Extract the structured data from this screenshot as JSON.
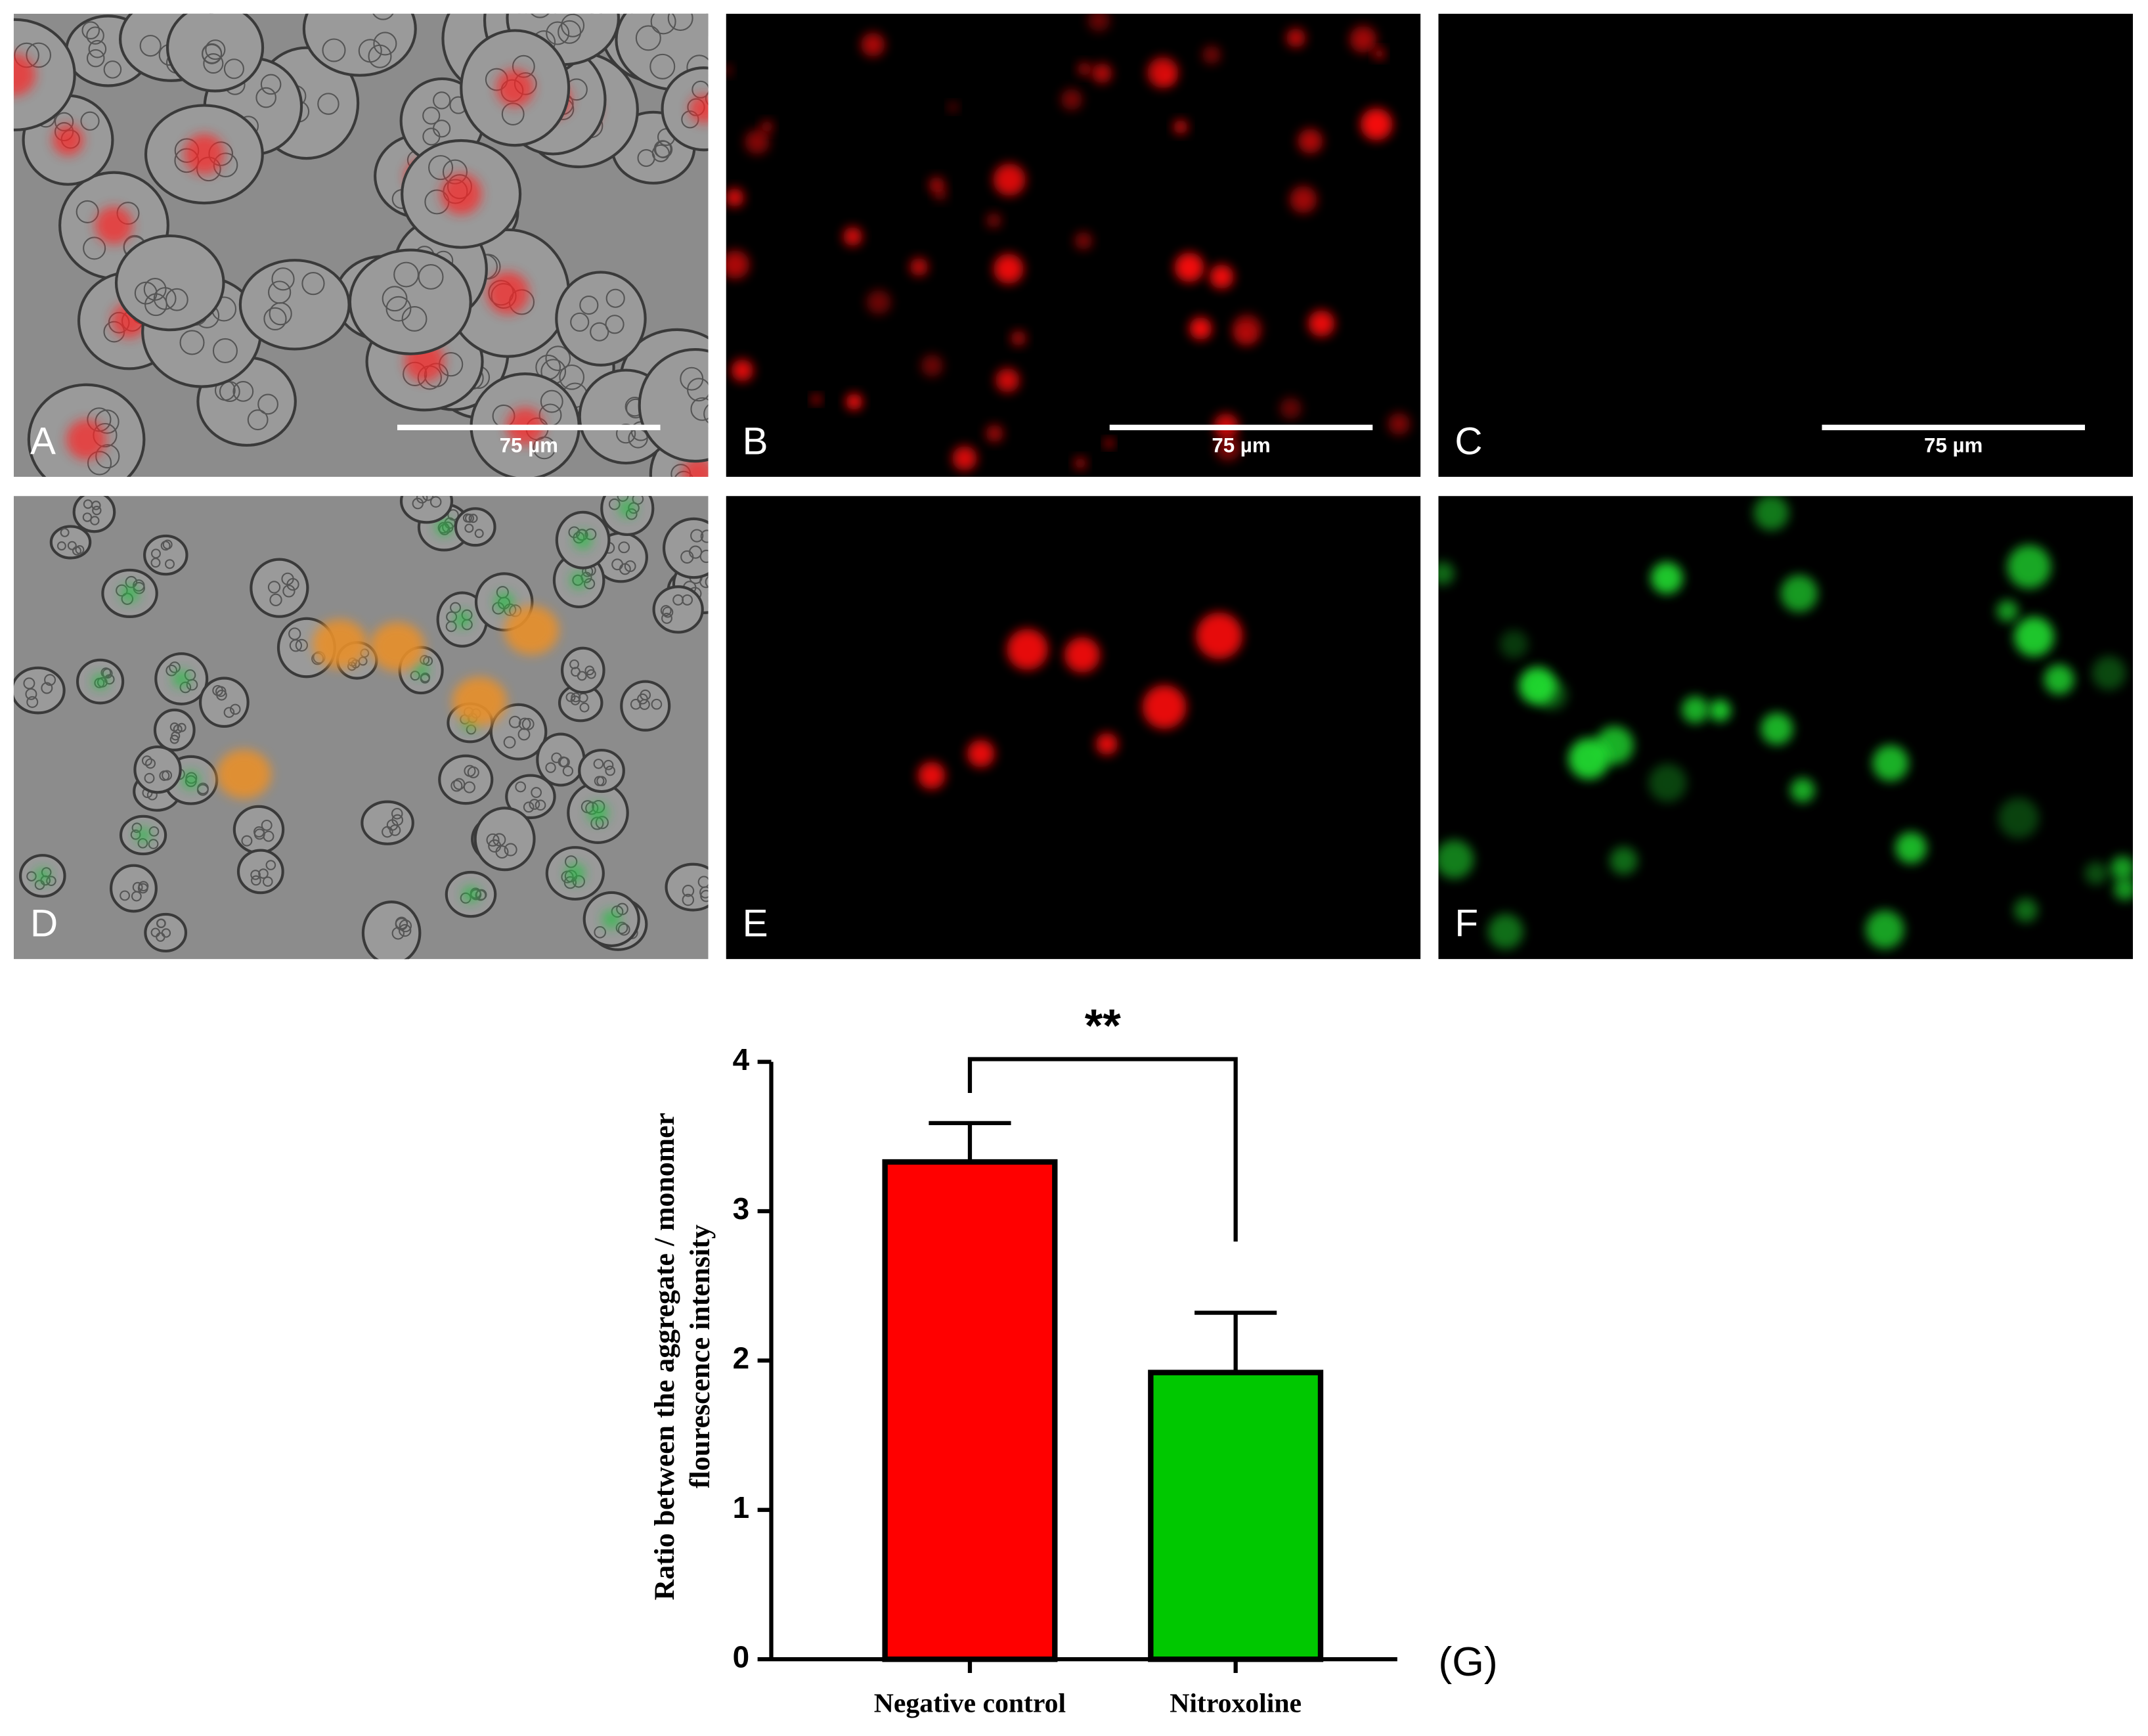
{
  "panels": [
    {
      "label": "A",
      "scale_bar": "75 µm"
    },
    {
      "label": "B",
      "scale_bar": "75 µm"
    },
    {
      "label": "C",
      "scale_bar": "75 µm"
    },
    {
      "label": "D"
    },
    {
      "label": "E"
    },
    {
      "label": "F"
    }
  ],
  "chart_data": {
    "type": "bar",
    "ylabel": [
      "Ratio between the aggregate / monomer",
      "flourescence intensity"
    ],
    "categories": [
      "Negative control",
      "Nitroxoline"
    ],
    "values": [
      3.33,
      1.92
    ],
    "errors": [
      0.26,
      0.4
    ],
    "colors": [
      "#ff0000",
      "#00c800"
    ],
    "ylim": [
      0,
      4
    ],
    "yticks": [
      0,
      1,
      2,
      3,
      4
    ],
    "annotation": "**",
    "panel_label": "(G)"
  }
}
